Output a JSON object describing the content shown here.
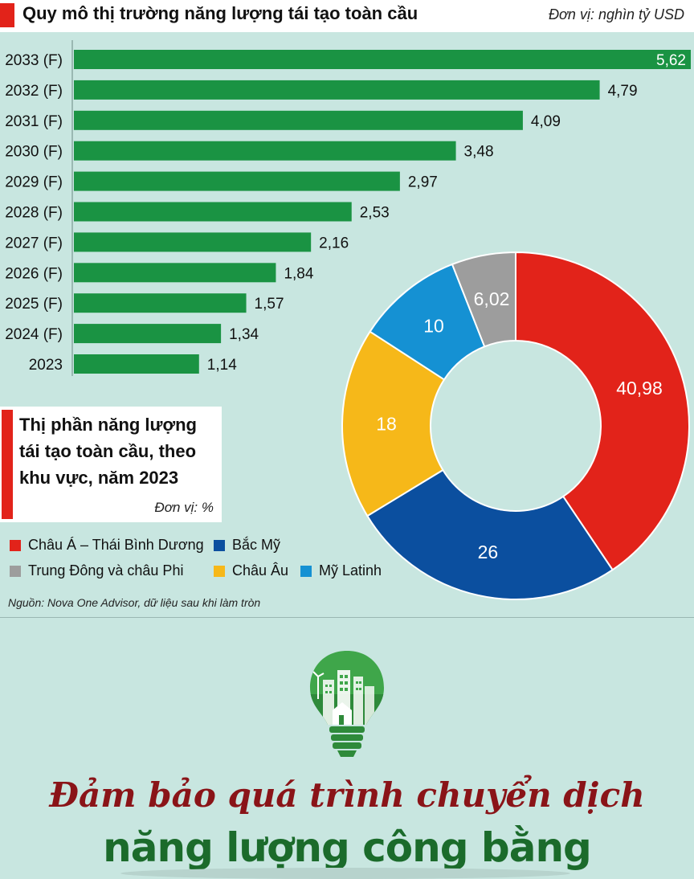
{
  "header": {
    "title": "Quy mô thị trường năng lượng tái tạo toàn cầu",
    "unit": "Đơn vị: nghìn tỷ USD"
  },
  "chart_data": [
    {
      "type": "bar",
      "orientation": "horizontal",
      "categories": [
        "2033 (F)",
        "2032 (F)",
        "2031 (F)",
        "2030 (F)",
        "2029 (F)",
        "2028 (F)",
        "2027 (F)",
        "2026 (F)",
        "2025 (F)",
        "2024 (F)",
        "2023"
      ],
      "values": [
        5.62,
        4.79,
        4.09,
        3.48,
        2.97,
        2.53,
        2.16,
        1.84,
        1.57,
        1.34,
        1.14
      ],
      "value_labels": [
        "5,62",
        "4,79",
        "4,09",
        "3,48",
        "2,97",
        "2,53",
        "2,16",
        "1,84",
        "1,57",
        "1,34",
        "1,14"
      ],
      "color": "#1a9343",
      "title": "Quy mô thị trường năng lượng tái tạo toàn cầu"
    },
    {
      "type": "pie",
      "variant": "donut",
      "title": "Thị phần năng lượng tái tạo toàn cầu, theo khu vực, năm 2023",
      "unit": "Đơn vị: %",
      "slices": [
        {
          "name": "Châu Á - Thái Bình Dương",
          "value": 40.98,
          "label": "40,98",
          "color": "#e2231a"
        },
        {
          "name": "Bắc Mỹ",
          "value": 26,
          "label": "26",
          "color": "#0b4f9f"
        },
        {
          "name": "Châu Âu",
          "value": 18,
          "label": "18",
          "color": "#f6b819"
        },
        {
          "name": "Mỹ Latinh",
          "value": 10,
          "label": "10",
          "color": "#1591d3"
        },
        {
          "name": "Trung Đông và châu Phi",
          "value": 6.02,
          "label": "6,02",
          "color": "#9d9d9d"
        }
      ]
    }
  ],
  "pie_box": {
    "title": "Thị phần năng lượng tái tạo toàn cầu, theo khu vực, năm 2023",
    "unit": "Đơn vị: %"
  },
  "legend": [
    {
      "label": "Châu Á – Thái Bình Dương",
      "color": "#e2231a"
    },
    {
      "label": "Bắc Mỹ",
      "color": "#0b4f9f"
    },
    {
      "label": "Trung Đông và châu Phi",
      "color": "#9d9d9d"
    },
    {
      "label": "Châu Âu",
      "color": "#f6b819"
    },
    {
      "label": "Mỹ Latinh",
      "color": "#1591d3"
    }
  ],
  "source": "Nguồn: Nova One Advisor, dữ liệu sau khi làm tròn",
  "banner": {
    "line1": "Đảm bảo quá trình chuyển dịch",
    "line2": "năng lượng công bằng"
  },
  "icons": {
    "bulb": "lightbulb-city-icon"
  }
}
